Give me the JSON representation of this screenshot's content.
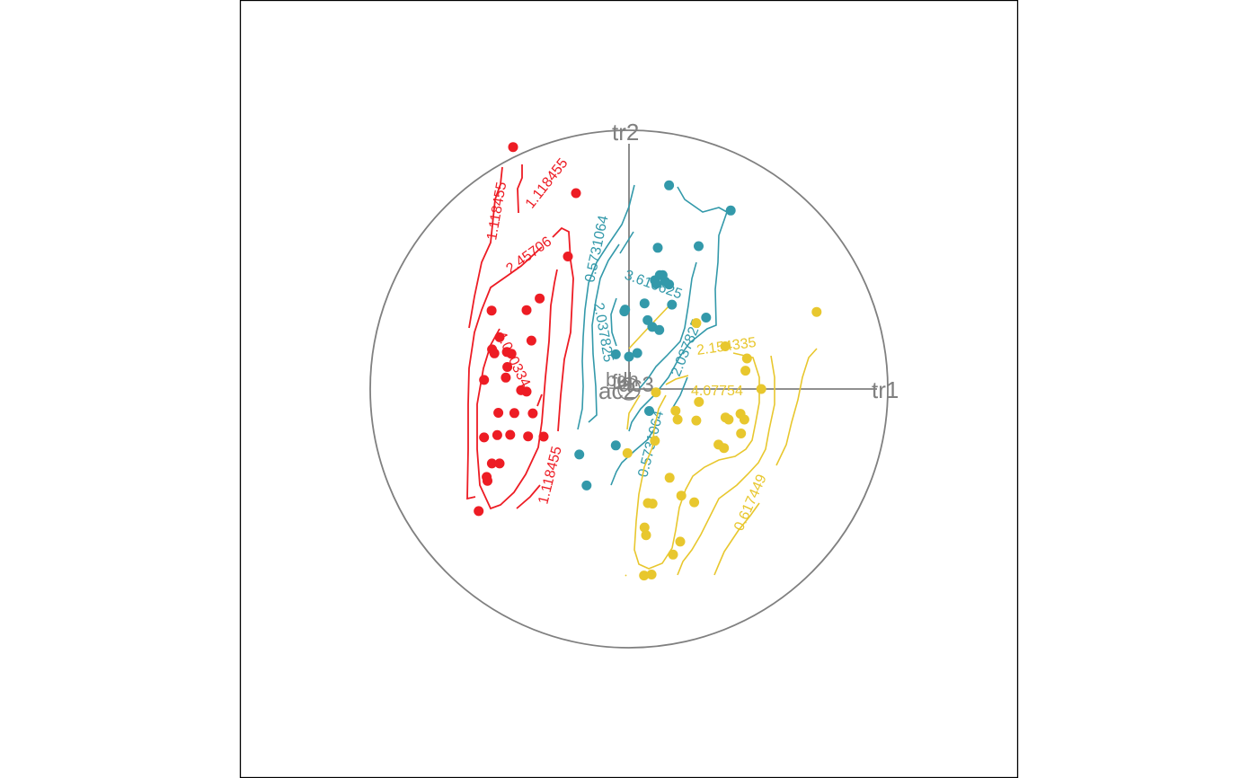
{
  "chart_data": {
    "type": "scatter",
    "title": "",
    "xlabel": "",
    "ylabel": "",
    "grid": false,
    "legend": "none",
    "colors": {
      "frame": "#000000",
      "axis": "#808080",
      "red_group": "#ED1C24",
      "teal_group": "#3399AA",
      "yellow_group": "#E8C72E"
    },
    "axis_labels": [
      "tr1",
      "tr2",
      "ac2",
      "ac3",
      "fin",
      "bdh"
    ],
    "contour_labels": {
      "red": [
        "1.118455",
        "1.118455",
        "2.45706",
        "4.0",
        "1.118455"
      ],
      "teal": [
        "0.5731064",
        "3.616625",
        "2.037825",
        "2.037825",
        "0.5731064"
      ],
      "yellow": [
        "2.154335",
        "4.07754",
        "0.617449"
      ]
    },
    "series": [
      {
        "group": "red",
        "color": "#ED1C24",
        "points": [
          [
            -0.448,
            0.935
          ],
          [
            -0.205,
            0.757
          ],
          [
            -0.236,
            0.512
          ],
          [
            -0.345,
            0.35
          ],
          [
            -0.396,
            0.305
          ],
          [
            -0.531,
            0.303
          ],
          [
            -0.529,
            0.153
          ],
          [
            -0.472,
            0.143
          ],
          [
            -0.454,
            0.136
          ],
          [
            -0.47,
            0.085
          ],
          [
            -0.52,
            0.138
          ],
          [
            -0.476,
            0.044
          ],
          [
            -0.396,
            -0.01
          ],
          [
            -0.417,
            -0.005
          ],
          [
            -0.56,
            0.035
          ],
          [
            -0.505,
            -0.092
          ],
          [
            -0.443,
            -0.093
          ],
          [
            -0.372,
            -0.094
          ],
          [
            -0.39,
            -0.183
          ],
          [
            -0.33,
            -0.184
          ],
          [
            -0.56,
            -0.187
          ],
          [
            -0.509,
            -0.178
          ],
          [
            -0.53,
            -0.288
          ],
          [
            -0.5,
            -0.288
          ],
          [
            -0.55,
            -0.34
          ],
          [
            -0.581,
            -0.472
          ],
          [
            -0.547,
            -0.355
          ],
          [
            -0.459,
            -0.177
          ],
          [
            -0.377,
            0.187
          ],
          [
            -0.5,
            0.2
          ]
        ]
      },
      {
        "group": "teal",
        "color": "#3399AA",
        "points": [
          [
            0.155,
            0.787
          ],
          [
            0.393,
            0.69
          ],
          [
            0.111,
            0.546
          ],
          [
            0.269,
            0.552
          ],
          [
            0.119,
            0.44
          ],
          [
            0.14,
            0.415
          ],
          [
            0.105,
            0.407
          ],
          [
            0.155,
            0.404
          ],
          [
            0.06,
            0.331
          ],
          [
            0.166,
            0.326
          ],
          [
            -0.015,
            0.307
          ],
          [
            -0.018,
            0.3
          ],
          [
            0.072,
            0.266
          ],
          [
            0.298,
            0.276
          ],
          [
            0.117,
            0.228
          ],
          [
            -0.051,
            0.134
          ],
          [
            0.0,
            0.125
          ],
          [
            0.032,
            0.139
          ],
          [
            0.078,
            -0.085
          ],
          [
            0.09,
            0.24
          ],
          [
            -0.051,
            -0.218
          ],
          [
            -0.192,
            -0.253
          ],
          [
            -0.164,
            -0.373
          ],
          [
            0.1,
            0.42
          ],
          [
            0.13,
            0.44
          ]
        ]
      },
      {
        "group": "yellow",
        "color": "#E8C72E",
        "points": [
          [
            0.725,
            0.298
          ],
          [
            0.26,
            0.255
          ],
          [
            0.372,
            0.165
          ],
          [
            0.456,
            0.118
          ],
          [
            0.45,
            0.071
          ],
          [
            0.511,
            0.0
          ],
          [
            0.104,
            -0.013
          ],
          [
            0.27,
            -0.05
          ],
          [
            0.18,
            -0.084
          ],
          [
            0.188,
            -0.118
          ],
          [
            0.431,
            -0.096
          ],
          [
            0.373,
            -0.11
          ],
          [
            0.385,
            -0.118
          ],
          [
            0.26,
            -0.122
          ],
          [
            0.446,
            -0.118
          ],
          [
            0.433,
            -0.172
          ],
          [
            0.1,
            -0.2
          ],
          [
            0.346,
            -0.215
          ],
          [
            0.367,
            -0.228
          ],
          [
            -0.006,
            -0.248
          ],
          [
            0.157,
            -0.343
          ],
          [
            0.202,
            -0.412
          ],
          [
            0.073,
            -0.441
          ],
          [
            0.091,
            -0.443
          ],
          [
            0.252,
            -0.438
          ],
          [
            0.06,
            -0.535
          ],
          [
            0.066,
            -0.565
          ],
          [
            0.198,
            -0.59
          ],
          [
            0.17,
            -0.64
          ],
          [
            0.087,
            -0.717
          ],
          [
            0.058,
            -0.721
          ]
        ]
      }
    ]
  }
}
